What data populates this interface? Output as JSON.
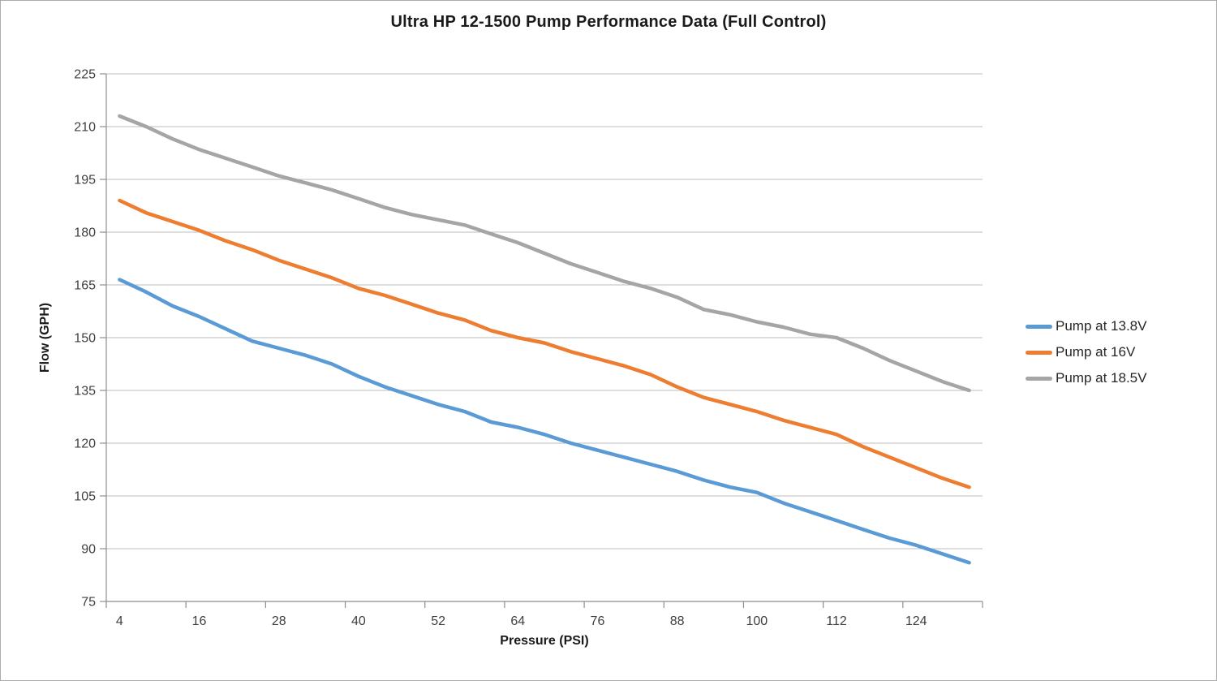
{
  "chart_data": {
    "type": "line",
    "title": "Ultra HP 12-1500 Pump Performance Data (Full Control)",
    "xlabel": "Pressure (PSI)",
    "ylabel": "Flow (GPH)",
    "x": [
      4,
      8,
      12,
      16,
      20,
      24,
      28,
      32,
      36,
      40,
      44,
      48,
      52,
      56,
      60,
      64,
      68,
      72,
      76,
      80,
      84,
      88,
      92,
      96,
      100,
      104,
      108,
      112,
      116,
      120,
      124,
      128,
      132
    ],
    "x_tick_labels": [
      "4",
      "16",
      "28",
      "40",
      "52",
      "64",
      "76",
      "88",
      "100",
      "112",
      "124"
    ],
    "x_tick_every": 3,
    "ylim": [
      75,
      225
    ],
    "y_ticks": [
      75,
      90,
      105,
      120,
      135,
      150,
      165,
      180,
      195,
      210,
      225
    ],
    "grid": "horizontal",
    "legend_position": "right",
    "axis_color": "#8e8e8e",
    "gridline_color": "#bcbcbc",
    "series": [
      {
        "name": "Pump at 13.8V",
        "color": "#5B9BD5",
        "values": [
          166.5,
          163,
          159,
          156,
          152.5,
          149,
          147,
          145,
          142.5,
          139,
          136,
          133.5,
          131,
          129,
          126,
          124.5,
          122.5,
          120,
          118,
          116,
          114,
          112,
          109.5,
          107.5,
          106,
          103,
          100.5,
          98,
          95.5,
          93,
          91,
          88.5,
          86
        ]
      },
      {
        "name": "Pump at 16V",
        "color": "#ED7D31",
        "values": [
          189,
          185.5,
          183,
          180.5,
          177.5,
          175,
          172,
          169.5,
          167,
          164,
          162,
          159.5,
          157,
          155,
          152,
          150,
          148.5,
          146,
          144,
          142,
          139.5,
          136,
          133,
          131,
          129,
          126.5,
          124.5,
          122.5,
          119,
          116,
          113,
          110,
          107.5
        ]
      },
      {
        "name": "Pump at 18.5V",
        "color": "#A5A5A5",
        "values": [
          213,
          210,
          206.5,
          203.5,
          201,
          198.5,
          196,
          194,
          192,
          189.5,
          187,
          185,
          183.5,
          182,
          179.5,
          177,
          174,
          171,
          168.5,
          166,
          164,
          161.5,
          158,
          156.5,
          154.5,
          153,
          151,
          150,
          147,
          143.5,
          140.5,
          137.5,
          135
        ]
      }
    ]
  }
}
